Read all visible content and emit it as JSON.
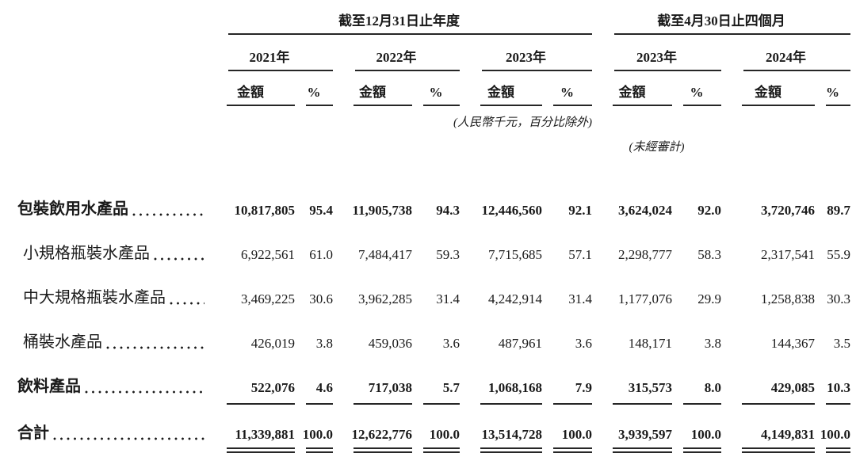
{
  "page": {
    "background": "#ffffff",
    "text_color": "#1a1a1a",
    "rule_color": "#262626"
  },
  "table": {
    "header": {
      "groups": [
        {
          "label": "截至12月31日止年度"
        },
        {
          "label": "截至4月30日止四個月"
        }
      ],
      "years": [
        "2021年",
        "2022年",
        "2023年",
        "2023年",
        "2024年"
      ],
      "amount_label": "金額",
      "percent_label": "%",
      "notes": {
        "units": "(人民幣千元，百分比除外)",
        "unaudited": "(未經審計)"
      }
    },
    "rows": [
      {
        "label": "包裝飲用水產品",
        "style": "bold",
        "v": [
          "10,817,805",
          "95.4",
          "11,905,738",
          "94.3",
          "12,446,560",
          "92.1",
          "3,624,024",
          "92.0",
          "3,720,746",
          "89.7"
        ]
      },
      {
        "label": "小規格瓶裝水產品",
        "style": "sub",
        "v": [
          "6,922,561",
          "61.0",
          "7,484,417",
          "59.3",
          "7,715,685",
          "57.1",
          "2,298,777",
          "58.3",
          "2,317,541",
          "55.9"
        ]
      },
      {
        "label": "中大規格瓶裝水產品",
        "style": "sub",
        "v": [
          "3,469,225",
          "30.6",
          "3,962,285",
          "31.4",
          "4,242,914",
          "31.4",
          "1,177,076",
          "29.9",
          "1,258,838",
          "30.3"
        ]
      },
      {
        "label": "桶裝水產品",
        "style": "sub",
        "v": [
          "426,019",
          "3.8",
          "459,036",
          "3.6",
          "487,961",
          "3.6",
          "148,171",
          "3.8",
          "144,367",
          "3.5"
        ]
      },
      {
        "label": "飲料產品",
        "style": "bold-rule",
        "v": [
          "522,076",
          "4.6",
          "717,038",
          "5.7",
          "1,068,168",
          "7.9",
          "315,573",
          "8.0",
          "429,085",
          "10.3"
        ]
      },
      {
        "label": "合計",
        "style": "total",
        "v": [
          "11,339,881",
          "100.0",
          "12,622,776",
          "100.0",
          "13,514,728",
          "100.0",
          "3,939,597",
          "100.0",
          "4,149,831",
          "100.0"
        ]
      }
    ]
  }
}
